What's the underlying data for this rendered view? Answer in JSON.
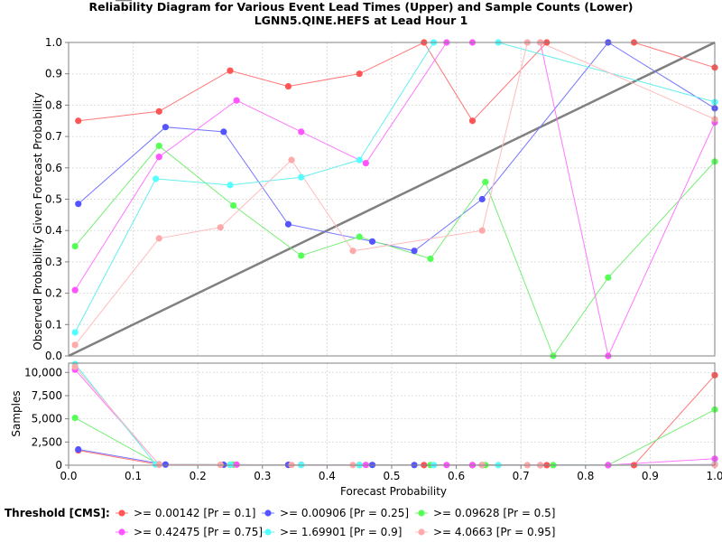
{
  "chart_data": {
    "type": "line",
    "title": "Reliability Diagram for Various Event Lead Times (Upper) and Sample Counts (Lower)",
    "subtitle": "LGNN5.QINE.HEFS at Lead Hour 1",
    "xlabel": "Forecast Probability",
    "ylabel_upper": "Observed Probability Given Forecast Probability",
    "ylabel_lower": "Samples",
    "xlim": [
      0,
      1
    ],
    "ylim_upper": [
      0,
      1
    ],
    "ylim_lower": [
      0,
      11000
    ],
    "x_ticks": [
      "0.0",
      "0.1",
      "0.2",
      "0.3",
      "0.4",
      "0.5",
      "0.6",
      "0.7",
      "0.8",
      "0.9",
      "1.0"
    ],
    "y_ticks_upper": [
      "0.0",
      "0.1",
      "0.2",
      "0.3",
      "0.4",
      "0.5",
      "0.6",
      "0.7",
      "0.8",
      "0.9",
      "1.0"
    ],
    "y_ticks_lower": [
      "0",
      "2,500",
      "5,000",
      "7,500",
      "10,000"
    ],
    "legend_title": "Threshold [CMS]:",
    "perfect_label": "Perfect",
    "perfect_color": "#808080",
    "series": [
      {
        "name": ">= 0.00142 [Pr = 0.1]",
        "color": "#ff5555",
        "line_color": "#ff7777",
        "x": [
          0.015,
          0.14,
          0.25,
          0.34,
          0.45,
          0.55,
          0.625,
          0.74,
          0.875,
          1.0
        ],
        "y": [
          0.75,
          0.78,
          0.91,
          0.86,
          0.9,
          1.0,
          0.75,
          1.0,
          1.0,
          0.92
        ],
        "samples": [
          1600,
          60,
          40,
          30,
          20,
          15,
          10,
          8,
          5,
          9700
        ]
      },
      {
        "name": ">= 0.00906 [Pr = 0.25]",
        "color": "#5555ff",
        "line_color": "#7777ff",
        "x": [
          0.015,
          0.15,
          0.24,
          0.34,
          0.47,
          0.535,
          0.64,
          0.835,
          1.0
        ],
        "y": [
          0.485,
          0.73,
          0.715,
          0.42,
          0.365,
          0.335,
          0.5,
          1.0,
          0.79
        ],
        "samples": [
          1700,
          70,
          50,
          40,
          30,
          20,
          15,
          10,
          80
        ]
      },
      {
        "name": ">= 0.09628 [Pr = 0.5]",
        "color": "#55ff55",
        "line_color": "#77ee77",
        "x": [
          0.01,
          0.14,
          0.255,
          0.36,
          0.45,
          0.56,
          0.645,
          0.75,
          0.835,
          1.0
        ],
        "y": [
          0.35,
          0.67,
          0.48,
          0.32,
          0.38,
          0.31,
          0.555,
          0.0,
          0.25,
          0.62
        ],
        "samples": [
          5100,
          100,
          60,
          40,
          30,
          20,
          15,
          10,
          8,
          6000
        ]
      },
      {
        "name": ">= 0.42475 [Pr = 0.75]",
        "color": "#ff55ff",
        "line_color": "#ff77ff",
        "x": [
          0.01,
          0.14,
          0.26,
          0.36,
          0.46,
          0.585,
          0.625,
          0.73,
          0.835,
          1.0
        ],
        "y": [
          0.21,
          0.635,
          0.815,
          0.715,
          0.615,
          1.0,
          1.0,
          1.0,
          0.0,
          0.745
        ],
        "samples": [
          10300,
          90,
          60,
          40,
          30,
          20,
          15,
          10,
          5,
          700
        ]
      },
      {
        "name": ">= 1.69901 [Pr = 0.9]",
        "color": "#55ffff",
        "line_color": "#66eeee",
        "x": [
          0.01,
          0.135,
          0.25,
          0.36,
          0.45,
          0.565,
          0.665,
          1.0
        ],
        "y": [
          0.075,
          0.565,
          0.545,
          0.57,
          0.625,
          1.0,
          1.0,
          0.81
        ],
        "samples": [
          10900,
          80,
          50,
          30,
          20,
          15,
          10,
          50
        ]
      },
      {
        "name": ">= 4.0663 [Pr = 0.95]",
        "color": "#ffaaaa",
        "line_color": "#ffbbbb",
        "x": [
          0.01,
          0.14,
          0.235,
          0.345,
          0.44,
          0.64,
          0.71,
          0.73,
          1.0
        ],
        "y": [
          0.035,
          0.375,
          0.41,
          0.625,
          0.335,
          0.4,
          1.0,
          1.0,
          0.755
        ],
        "samples": [
          10600,
          70,
          40,
          30,
          20,
          15,
          10,
          8,
          40
        ]
      }
    ]
  }
}
